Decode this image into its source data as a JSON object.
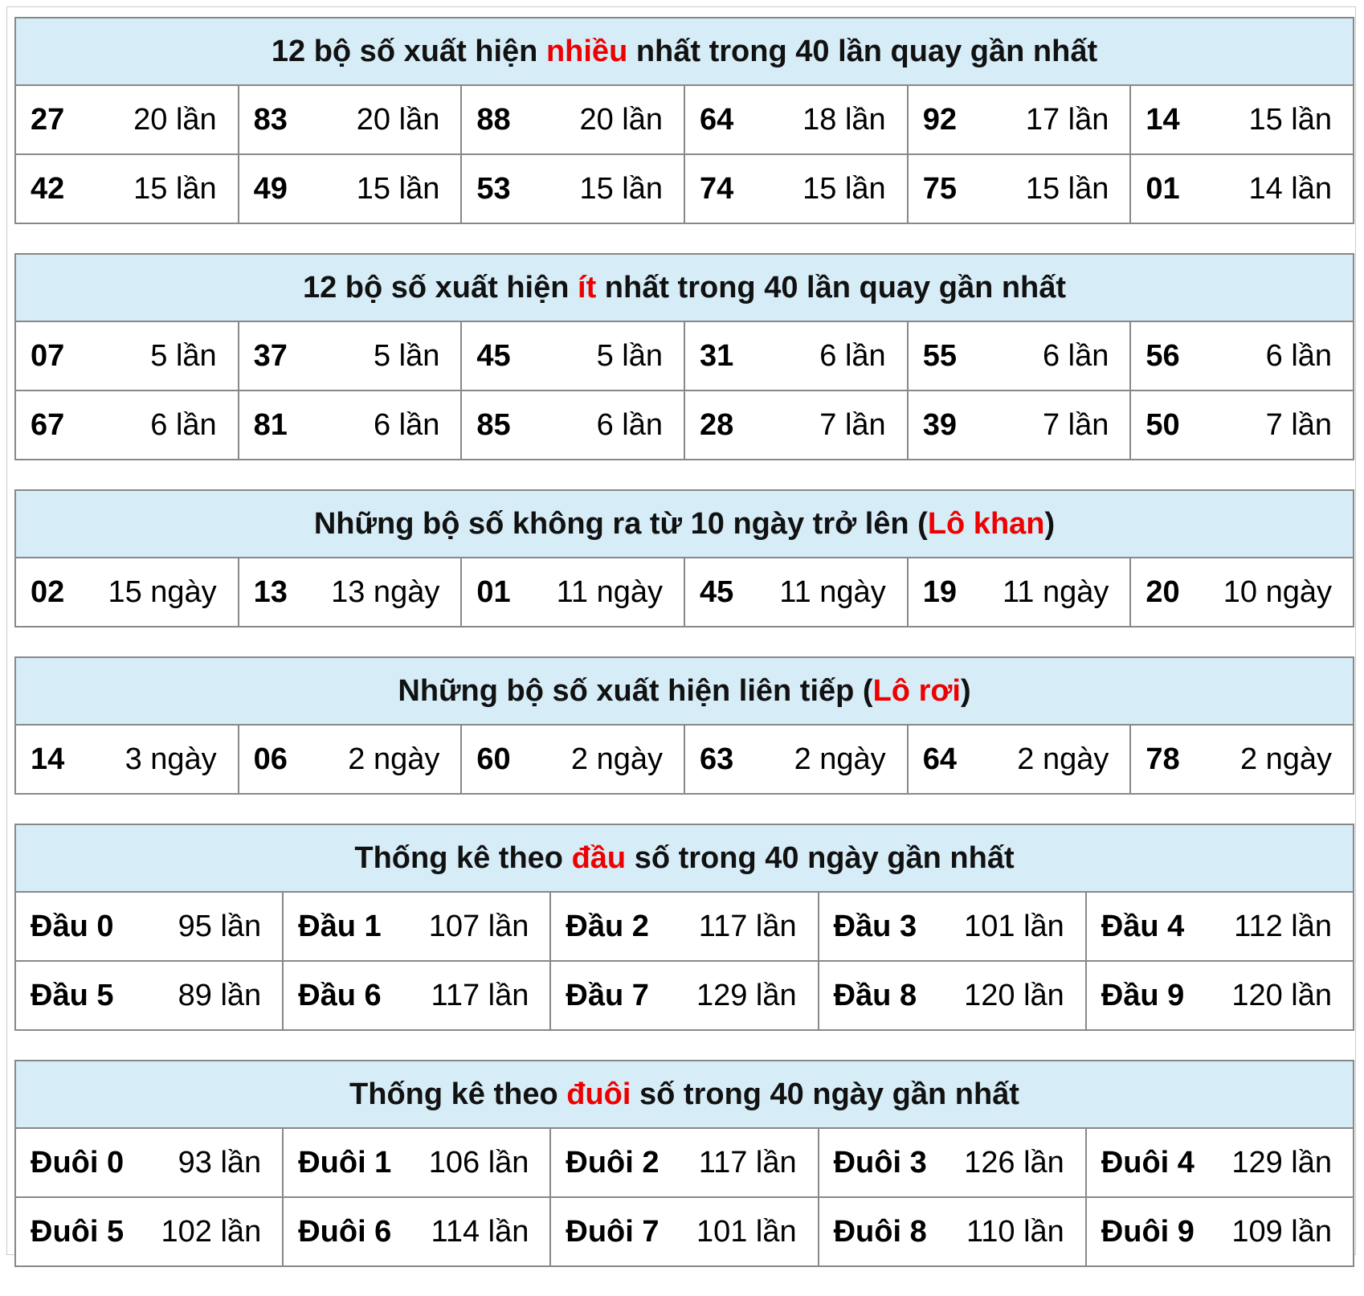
{
  "sections": [
    {
      "title": [
        "12 bộ số xuất hiện ",
        "nhiều",
        " nhất trong 40 lần quay gần nhất"
      ],
      "rows": [
        [
          [
            "27",
            "20 lần"
          ],
          [
            "83",
            "20 lần"
          ],
          [
            "88",
            "20 lần"
          ],
          [
            "64",
            "18 lần"
          ],
          [
            "92",
            "17 lần"
          ],
          [
            "14",
            "15 lần"
          ]
        ],
        [
          [
            "42",
            "15 lần"
          ],
          [
            "49",
            "15 lần"
          ],
          [
            "53",
            "15 lần"
          ],
          [
            "74",
            "15 lần"
          ],
          [
            "75",
            "15 lần"
          ],
          [
            "01",
            "14 lần"
          ]
        ]
      ]
    },
    {
      "title": [
        "12 bộ số xuất hiện ",
        "ít",
        " nhất trong 40 lần quay gần nhất"
      ],
      "rows": [
        [
          [
            "07",
            "5 lần"
          ],
          [
            "37",
            "5 lần"
          ],
          [
            "45",
            "5 lần"
          ],
          [
            "31",
            "6 lần"
          ],
          [
            "55",
            "6 lần"
          ],
          [
            "56",
            "6 lần"
          ]
        ],
        [
          [
            "67",
            "6 lần"
          ],
          [
            "81",
            "6 lần"
          ],
          [
            "85",
            "6 lần"
          ],
          [
            "28",
            "7 lần"
          ],
          [
            "39",
            "7 lần"
          ],
          [
            "50",
            "7 lần"
          ]
        ]
      ]
    },
    {
      "title": [
        "Những bộ số không ra từ 10 ngày trở lên (",
        "Lô khan",
        ")"
      ],
      "rows": [
        [
          [
            "02",
            "15 ngày"
          ],
          [
            "13",
            "13 ngày"
          ],
          [
            "01",
            "11 ngày"
          ],
          [
            "45",
            "11 ngày"
          ],
          [
            "19",
            "11 ngày"
          ],
          [
            "20",
            "10 ngày"
          ]
        ]
      ]
    },
    {
      "title": [
        "Những bộ số xuất hiện liên tiếp (",
        "Lô rơi",
        ")"
      ],
      "rows": [
        [
          [
            "14",
            "3 ngày"
          ],
          [
            "06",
            "2 ngày"
          ],
          [
            "60",
            "2 ngày"
          ],
          [
            "63",
            "2 ngày"
          ],
          [
            "64",
            "2 ngày"
          ],
          [
            "78",
            "2 ngày"
          ]
        ]
      ]
    },
    {
      "title": [
        "Thống kê theo ",
        "đầu",
        " số trong 40 ngày gần nhất"
      ],
      "rows": [
        [
          [
            "Đầu 0",
            "95 lần"
          ],
          [
            "Đầu 1",
            "107 lần"
          ],
          [
            "Đầu 2",
            "117 lần"
          ],
          [
            "Đầu 3",
            "101 lần"
          ],
          [
            "Đầu 4",
            "112 lần"
          ]
        ],
        [
          [
            "Đầu 5",
            "89 lần"
          ],
          [
            "Đầu 6",
            "117 lần"
          ],
          [
            "Đầu 7",
            "129 lần"
          ],
          [
            "Đầu 8",
            "120 lần"
          ],
          [
            "Đầu 9",
            "120 lần"
          ]
        ]
      ]
    },
    {
      "title": [
        "Thống kê theo ",
        "đuôi",
        " số trong 40 ngày gần nhất"
      ],
      "rows": [
        [
          [
            "Đuôi 0",
            "93 lần"
          ],
          [
            "Đuôi 1",
            "106 lần"
          ],
          [
            "Đuôi 2",
            "117 lần"
          ],
          [
            "Đuôi 3",
            "126 lần"
          ],
          [
            "Đuôi 4",
            "129 lần"
          ]
        ],
        [
          [
            "Đuôi 5",
            "102 lần"
          ],
          [
            "Đuôi 6",
            "114 lần"
          ],
          [
            "Đuôi 7",
            "101 lần"
          ],
          [
            "Đuôi 8",
            "110 lần"
          ],
          [
            "Đuôi 9",
            "109 lần"
          ]
        ]
      ]
    }
  ]
}
